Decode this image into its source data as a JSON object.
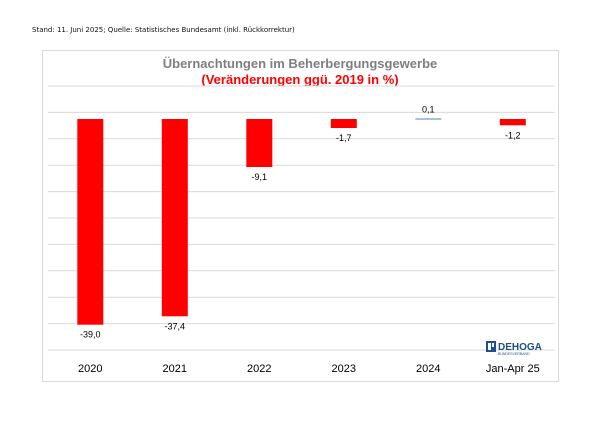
{
  "source": "Stand: 11. Juni 2025; Quelle: Statistisches Bundesamt (inkl. Rückkorrektur)",
  "colors": {
    "bar": "#ff0000",
    "bar_positive": "#4f81bd",
    "title": "#7f7f7f",
    "subtitle": "#ff0000",
    "grid": "#d9d9d9",
    "logo": "#1f4e8c"
  },
  "logo": {
    "name": "DEHOGA",
    "tagline": "BUNDESVERBAND"
  },
  "chart_data": {
    "type": "bar",
    "title": "Übernachtungen im Beherbergungsgewerbe",
    "subtitle": "(Veränderungen ggü. 2019 in %)",
    "categories": [
      "2020",
      "2021",
      "2022",
      "2023",
      "2024",
      "Jan-Apr 25"
    ],
    "values": [
      -39.0,
      -37.4,
      -9.1,
      -1.7,
      0.1,
      -1.2
    ],
    "value_labels": [
      "-39,0",
      "-37,4",
      "-9,1",
      "-1,7",
      "0,1",
      "-1,2"
    ],
    "ylim": [
      -45,
      5
    ],
    "grid": true,
    "legend": "none"
  }
}
